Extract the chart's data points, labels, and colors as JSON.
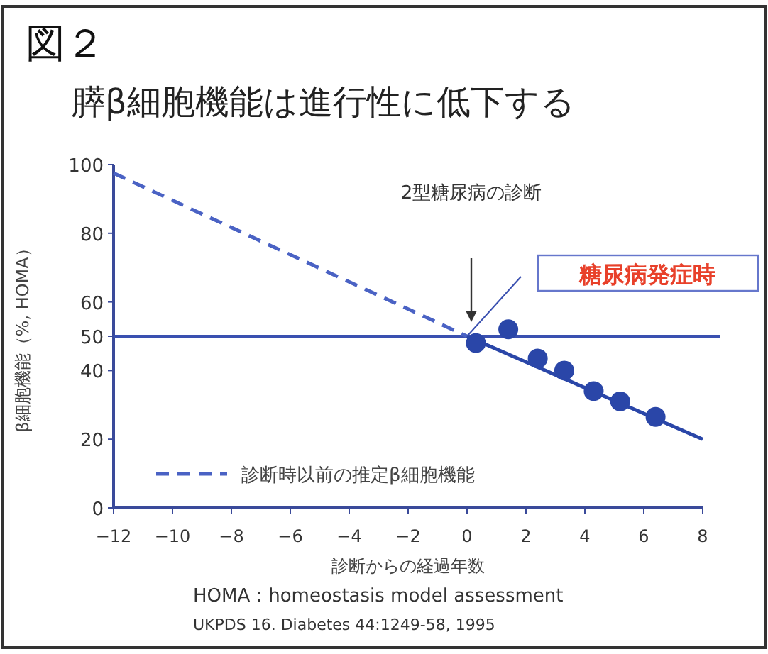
{
  "chart_data": {
    "type": "line",
    "title": "図２",
    "subtitle": "膵β細胞機能は進行性に低下する",
    "xlabel": "診断からの経過年数",
    "ylabel": "β細胞機能（%, HOMA）",
    "xlim": [
      -12,
      8
    ],
    "xticks": [
      -12,
      -10,
      -8,
      -6,
      -4,
      -2,
      0,
      2,
      4,
      6,
      8
    ],
    "ylim": [
      0,
      100
    ],
    "yticks": [
      0,
      20,
      40,
      50,
      60,
      80,
      100
    ],
    "grid": false,
    "legend": "bottom left",
    "series": [
      {
        "name": "診断時以前の推定β細胞機能",
        "line_style": "dashed",
        "color": "#4a62c4",
        "x": [
          -12,
          0
        ],
        "values": [
          97.5,
          50
        ]
      },
      {
        "line_style": "solid",
        "color": "#2a46a8",
        "x": [
          0,
          8
        ],
        "values": [
          50,
          20
        ]
      },
      {
        "type": "scatter",
        "marker": "circle",
        "color": "#2a46a8",
        "x": [
          0.3,
          1.4,
          2.4,
          3.3,
          4.3,
          5.2,
          6.4
        ],
        "values": [
          48,
          52,
          43.5,
          40,
          34,
          31,
          26.5
        ]
      }
    ],
    "ref_lines": [
      {
        "axis": "y",
        "value": 50,
        "color": "#3a50b0",
        "line_style": "solid"
      }
    ],
    "annotations": [
      "2型糖尿病の診断",
      "糖尿病発症時",
      "HOMA：homeostasis model assessment",
      "UKPDS 16. Diabetes 44:1249-58, 1995"
    ]
  }
}
